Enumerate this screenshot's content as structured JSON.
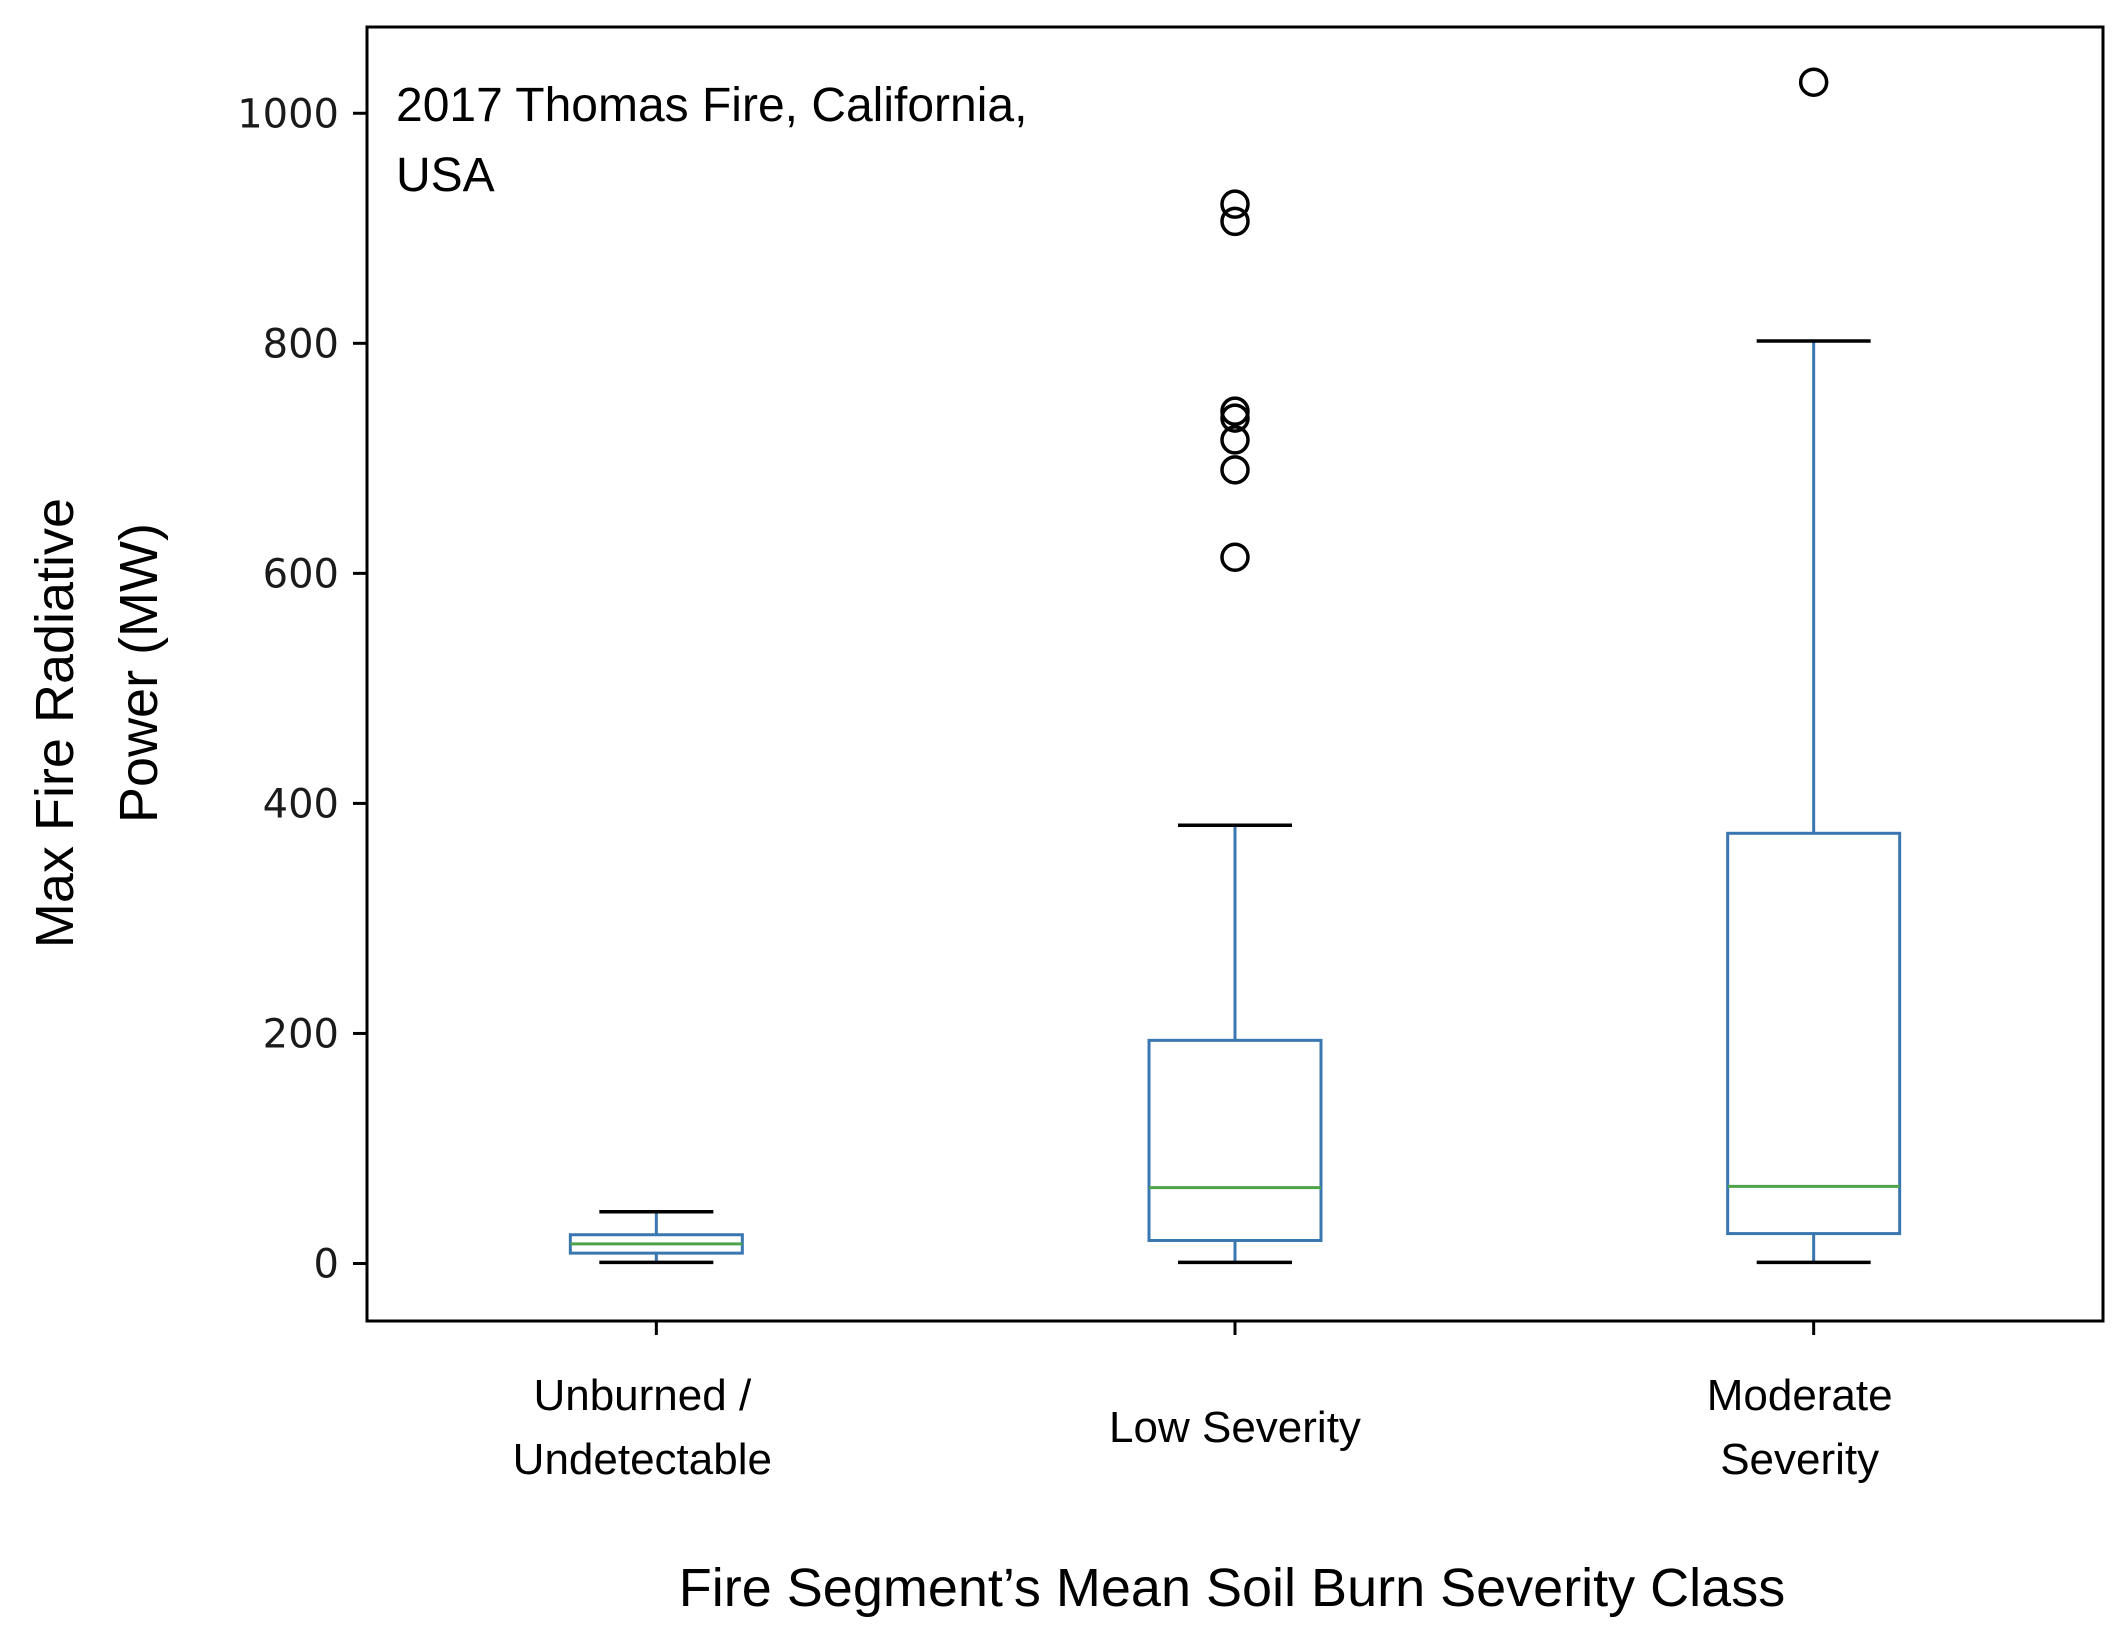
{
  "chart_data": {
    "type": "box",
    "annotation": [
      "2017 Thomas Fire, California,",
      "USA"
    ],
    "xlabel": "Fire Segment’s Mean Soil Burn Severity Class",
    "ylabel": [
      "Max Fire Radiative",
      "Power (MW)"
    ],
    "ylim": [
      -50,
      1075
    ],
    "yticks": [
      0,
      200,
      400,
      600,
      800,
      1000
    ],
    "grid": false,
    "colors": {
      "box": "#3a77b0",
      "median": "#4ea24a",
      "whisker_cap": "#000000",
      "outlier": "#000000"
    },
    "categories": [
      {
        "label": [
          "Unburned /",
          "Undetectable"
        ],
        "whisker_low": 1,
        "q1": 9,
        "median": 17,
        "q3": 25,
        "whisker_high": 45,
        "outliers": []
      },
      {
        "label": [
          "Low Severity"
        ],
        "whisker_low": 1,
        "q1": 20,
        "median": 66,
        "q3": 194,
        "whisker_high": 381,
        "outliers": [
          614,
          690,
          716,
          735,
          741,
          906,
          921
        ]
      },
      {
        "label": [
          "Moderate",
          "Severity"
        ],
        "whisker_low": 1,
        "q1": 26,
        "median": 67,
        "q3": 374,
        "whisker_high": 802,
        "outliers": [
          1027
        ]
      }
    ]
  }
}
